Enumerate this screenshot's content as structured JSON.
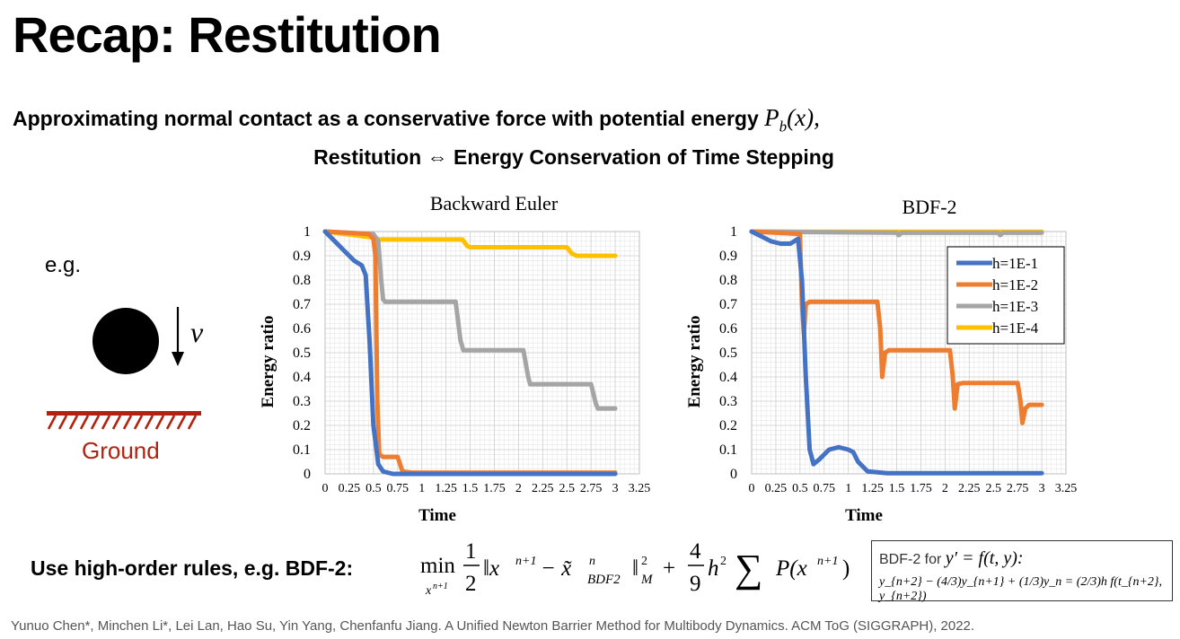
{
  "slide": {
    "title": "Recap: Restitution",
    "line1_text": "Approximating normal contact as a conservative force with potential energy ",
    "line1_math_main": "P",
    "line1_math_sub": "b",
    "line1_math_tail": "(x),",
    "line2": "Restitution ⇔ Energy Conservation of Time Stepping",
    "eg": "e.g.",
    "v_label": "v",
    "ground_label": "Ground",
    "bdf_text": "Use high-order rules, e.g. BDF-2:",
    "formula": {
      "min": "min",
      "min_sub": "x",
      "min_sub_sup": "n+1",
      "one": "1",
      "two": "2",
      "norm": "‖x",
      "norm_sup": "n+1",
      "minus": " − x̃",
      "tilde_sup": "n",
      "tilde_sub": "BDF2",
      "norm_close": "‖",
      "M_sup": "2",
      "M_sub": "M",
      "plus": "+",
      "four": "4",
      "nine": "9",
      "h": "h",
      "h_sup": "2",
      "sum": "∑",
      "P": "P(x",
      "P_sup": "n+1",
      "P_close": ")"
    },
    "infobox_label": "BDF-2 for ",
    "infobox_math1": "y′ = f(t, y):",
    "infobox_math2": "y_{n+2} − (4/3)y_{n+1} + (1/3)y_n = (2/3)h f(t_{n+2}, y_{n+2})",
    "citation": "Yunuo Chen*, Minchen Li*, Lei Lan, Hao Su, Yin Yang, Chenfanfu Jiang. A Unified Newton Barrier Method for Multibody Dynamics. ACM ToG (SIGGRAPH), 2022."
  },
  "colors": {
    "h=1E-1": "#4472c4",
    "h=1E-2": "#ed7d31",
    "h=1E-3": "#a5a5a5",
    "h=1E-4": "#ffc000",
    "ground": "#b32110"
  },
  "chart_data": [
    {
      "type": "line",
      "title": "Backward Euler",
      "xlabel": "Time",
      "ylabel": "Energy ratio",
      "xlim": [
        0,
        3.25
      ],
      "ylim": [
        0,
        1
      ],
      "xticks": [
        "0",
        "0.25",
        "0.5",
        "0.75",
        "1",
        "1.25",
        "1.5",
        "1.75",
        "2",
        "2.25",
        "2.5",
        "2.75",
        "3",
        "3.25"
      ],
      "yticks": [
        "0",
        "0.1",
        "0.2",
        "0.3",
        "0.4",
        "0.5",
        "0.6",
        "0.7",
        "0.8",
        "0.9",
        "1"
      ],
      "grid": true,
      "series": [
        {
          "name": "h=1E-1",
          "points": [
            [
              0,
              1
            ],
            [
              0.1,
              0.96
            ],
            [
              0.2,
              0.92
            ],
            [
              0.3,
              0.88
            ],
            [
              0.38,
              0.86
            ],
            [
              0.42,
              0.82
            ],
            [
              0.46,
              0.55
            ],
            [
              0.5,
              0.2
            ],
            [
              0.55,
              0.04
            ],
            [
              0.6,
              0.01
            ],
            [
              0.7,
              0
            ],
            [
              3,
              0
            ]
          ]
        },
        {
          "name": "h=1E-2",
          "points": [
            [
              0,
              1
            ],
            [
              0.45,
              0.99
            ],
            [
              0.5,
              0.97
            ],
            [
              0.52,
              0.9
            ],
            [
              0.54,
              0.3
            ],
            [
              0.56,
              0.08
            ],
            [
              0.6,
              0.07
            ],
            [
              0.75,
              0.07
            ],
            [
              0.8,
              0.01
            ],
            [
              0.9,
              0.005
            ],
            [
              3,
              0.005
            ]
          ]
        },
        {
          "name": "h=1E-3",
          "points": [
            [
              0,
              1
            ],
            [
              0.5,
              0.99
            ],
            [
              0.55,
              0.96
            ],
            [
              0.58,
              0.8
            ],
            [
              0.6,
              0.72
            ],
            [
              0.62,
              0.71
            ],
            [
              1.35,
              0.71
            ],
            [
              1.4,
              0.55
            ],
            [
              1.43,
              0.51
            ],
            [
              2.05,
              0.51
            ],
            [
              2.1,
              0.4
            ],
            [
              2.12,
              0.37
            ],
            [
              2.75,
              0.37
            ],
            [
              2.8,
              0.29
            ],
            [
              2.82,
              0.27
            ],
            [
              3,
              0.27
            ]
          ]
        },
        {
          "name": "h=1E-4",
          "points": [
            [
              0,
              1
            ],
            [
              0.5,
              0.975
            ],
            [
              0.55,
              0.967
            ],
            [
              1.42,
              0.967
            ],
            [
              1.47,
              0.94
            ],
            [
              1.5,
              0.935
            ],
            [
              2.5,
              0.935
            ],
            [
              2.55,
              0.91
            ],
            [
              2.6,
              0.9
            ],
            [
              3,
              0.9
            ]
          ]
        }
      ]
    },
    {
      "type": "line",
      "title": "BDF-2",
      "xlabel": "Time",
      "ylabel": "Energy ratio",
      "xlim": [
        0,
        3.25
      ],
      "ylim": [
        0,
        1
      ],
      "xticks": [
        "0",
        "0.25",
        "0.5",
        "0.75",
        "1",
        "1.25",
        "1.5",
        "1.75",
        "2",
        "2.25",
        "2.5",
        "2.75",
        "3",
        "3.25"
      ],
      "yticks": [
        "0",
        "0.1",
        "0.2",
        "0.3",
        "0.4",
        "0.5",
        "0.6",
        "0.7",
        "0.8",
        "0.9",
        "1"
      ],
      "grid": true,
      "legend": "top-right",
      "series": [
        {
          "name": "h=1E-1",
          "points": [
            [
              0,
              1
            ],
            [
              0.1,
              0.98
            ],
            [
              0.2,
              0.96
            ],
            [
              0.3,
              0.95
            ],
            [
              0.4,
              0.95
            ],
            [
              0.48,
              0.97
            ],
            [
              0.52,
              0.8
            ],
            [
              0.56,
              0.4
            ],
            [
              0.6,
              0.1
            ],
            [
              0.64,
              0.04
            ],
            [
              0.7,
              0.06
            ],
            [
              0.8,
              0.1
            ],
            [
              0.9,
              0.11
            ],
            [
              1.0,
              0.1
            ],
            [
              1.05,
              0.09
            ],
            [
              1.1,
              0.05
            ],
            [
              1.2,
              0.01
            ],
            [
              1.4,
              0.003
            ],
            [
              3,
              0.003
            ]
          ]
        },
        {
          "name": "h=1E-2",
          "points": [
            [
              0,
              1
            ],
            [
              0.5,
              0.99
            ],
            [
              0.52,
              0.7
            ],
            [
              0.54,
              0.58
            ],
            [
              0.56,
              0.7
            ],
            [
              0.6,
              0.71
            ],
            [
              1.3,
              0.71
            ],
            [
              1.33,
              0.6
            ],
            [
              1.35,
              0.4
            ],
            [
              1.38,
              0.5
            ],
            [
              1.42,
              0.51
            ],
            [
              2.05,
              0.51
            ],
            [
              2.08,
              0.4
            ],
            [
              2.1,
              0.27
            ],
            [
              2.13,
              0.37
            ],
            [
              2.18,
              0.375
            ],
            [
              2.75,
              0.375
            ],
            [
              2.78,
              0.3
            ],
            [
              2.8,
              0.21
            ],
            [
              2.83,
              0.27
            ],
            [
              2.87,
              0.285
            ],
            [
              3,
              0.285
            ]
          ]
        },
        {
          "name": "h=1E-3",
          "points": [
            [
              0,
              1
            ],
            [
              1.5,
              0.995
            ],
            [
              1.52,
              0.985
            ],
            [
              1.55,
              0.995
            ],
            [
              2.55,
              0.995
            ],
            [
              2.57,
              0.985
            ],
            [
              2.6,
              0.995
            ],
            [
              3,
              0.995
            ]
          ]
        },
        {
          "name": "h=1E-4",
          "points": [
            [
              0,
              1
            ],
            [
              0.5,
              0.999
            ],
            [
              3,
              0.999
            ]
          ]
        }
      ]
    }
  ]
}
